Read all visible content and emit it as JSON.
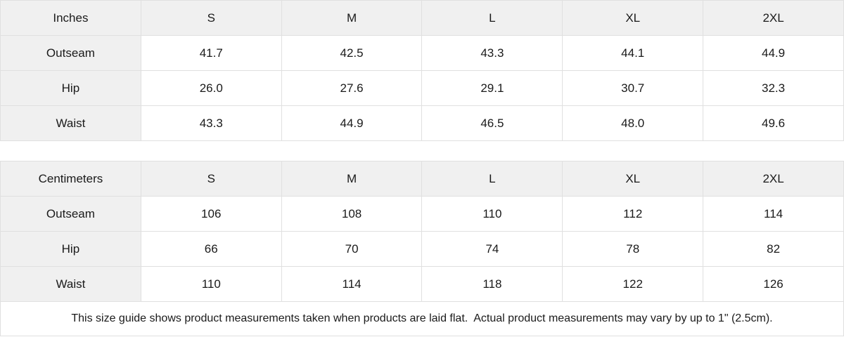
{
  "chart_data": [
    {
      "type": "table",
      "unit": "Inches",
      "header": [
        "Inches",
        "S",
        "M",
        "L",
        "XL",
        "2XL"
      ],
      "rows": [
        [
          "Outseam",
          "41.7",
          "42.5",
          "43.3",
          "44.1",
          "44.9"
        ],
        [
          "Hip",
          "26.0",
          "27.6",
          "29.1",
          "30.7",
          "32.3"
        ],
        [
          "Waist",
          "43.3",
          "44.9",
          "46.5",
          "48.0",
          "49.6"
        ]
      ]
    },
    {
      "type": "table",
      "unit": "Centimeters",
      "header": [
        "Centimeters",
        "S",
        "M",
        "L",
        "XL",
        "2XL"
      ],
      "rows": [
        [
          "Outseam",
          "106",
          "108",
          "110",
          "112",
          "114"
        ],
        [
          "Hip",
          "66",
          "70",
          "74",
          "78",
          "82"
        ],
        [
          "Waist",
          "110",
          "114",
          "118",
          "122",
          "126"
        ]
      ]
    }
  ],
  "footnote": "This size guide shows product measurements taken when products are laid flat.  Actual product measurements may vary by up to 1\" (2.5cm).",
  "colors": {
    "header_bg": "#f0f0f0",
    "border": "#e0e0e0",
    "text": "#1a1a1a",
    "background": "#ffffff"
  }
}
